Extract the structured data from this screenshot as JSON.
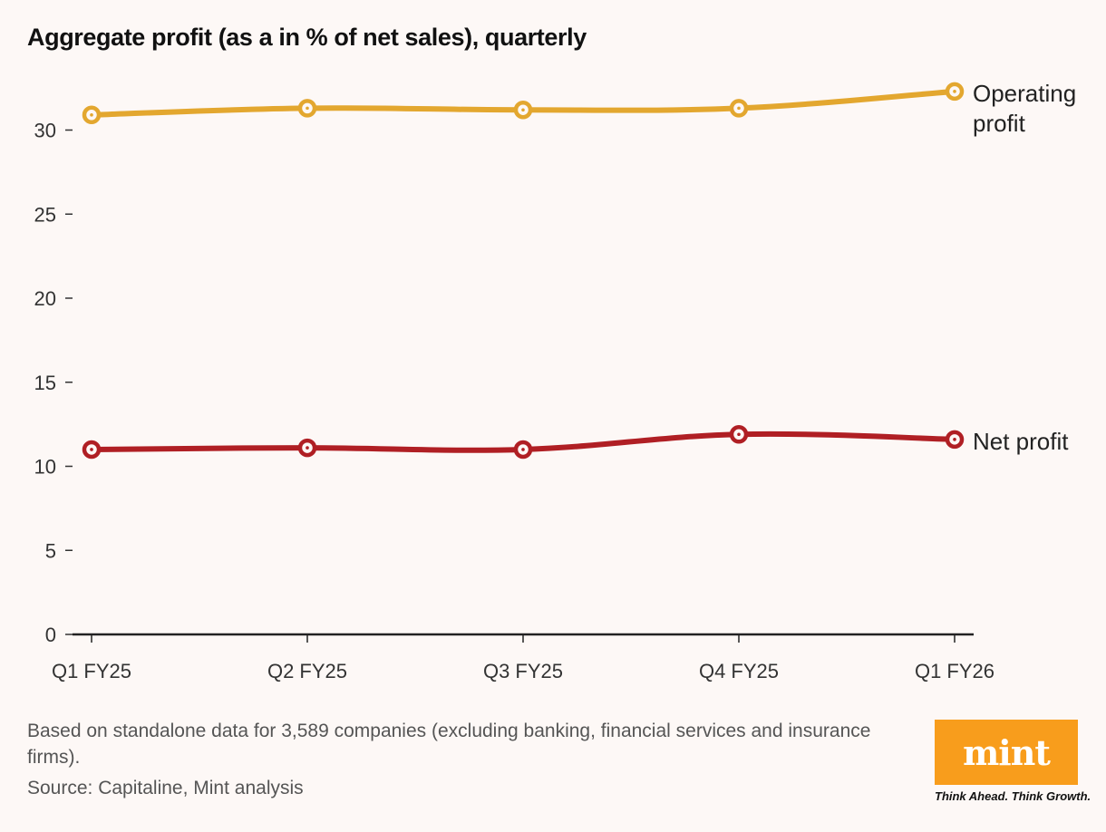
{
  "chart_data": {
    "type": "line",
    "title": "Aggregate profit (as a in % of net sales), quarterly",
    "categories": [
      "Q1 FY25",
      "Q2 FY25",
      "Q3 FY25",
      "Q4 FY25",
      "Q1 FY26"
    ],
    "yticks": [
      "0",
      "5",
      "10",
      "15",
      "20",
      "25",
      "30"
    ],
    "ylim": [
      0,
      33
    ],
    "xlabel": "",
    "ylabel": "",
    "series": [
      {
        "name": "Operating profit",
        "label_lines": [
          "Operating",
          "profit"
        ],
        "color": "#e3a72f",
        "values": [
          30.9,
          31.3,
          31.2,
          31.3,
          32.3
        ]
      },
      {
        "name": "Net profit",
        "label_lines": [
          "Net profit"
        ],
        "color": "#b01f24",
        "values": [
          11.0,
          11.1,
          11.0,
          11.9,
          11.6
        ]
      }
    ]
  },
  "footer": {
    "note": "Based on standalone data for 3,589 companies (excluding banking, financial services and insurance firms).",
    "source": "Source: Capitaline, Mint analysis"
  },
  "brand": {
    "logo_text": "mint",
    "tagline": "Think Ahead. Think Growth.",
    "logo_color": "#f89d1c"
  }
}
